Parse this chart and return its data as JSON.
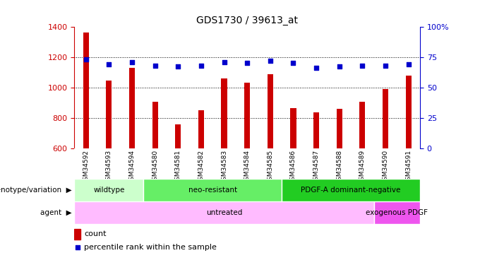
{
  "title": "GDS1730 / 39613_at",
  "samples": [
    "GSM34592",
    "GSM34593",
    "GSM34594",
    "GSM34580",
    "GSM34581",
    "GSM34582",
    "GSM34583",
    "GSM34584",
    "GSM34585",
    "GSM34586",
    "GSM34587",
    "GSM34588",
    "GSM34589",
    "GSM34590",
    "GSM34591"
  ],
  "counts": [
    1360,
    1045,
    1130,
    905,
    760,
    850,
    1060,
    1030,
    1085,
    865,
    835,
    860,
    905,
    990,
    1080
  ],
  "percentiles": [
    73,
    69,
    71,
    68,
    67,
    68,
    71,
    70,
    72,
    70,
    66,
    67,
    68,
    68,
    69
  ],
  "ymin": 600,
  "ymax": 1400,
  "bar_color": "#cc0000",
  "dot_color": "#0000cc",
  "background_color": "#ffffff",
  "plot_background": "#ffffff",
  "genotype_groups": [
    {
      "label": "wildtype",
      "start": 0,
      "end": 3,
      "color": "#ccffcc"
    },
    {
      "label": "neo-resistant",
      "start": 3,
      "end": 9,
      "color": "#66ee66"
    },
    {
      "label": "PDGF-A dominant-negative",
      "start": 9,
      "end": 15,
      "color": "#22cc22"
    }
  ],
  "agent_groups": [
    {
      "label": "untreated",
      "start": 0,
      "end": 13,
      "color": "#ffbbff"
    },
    {
      "label": "exogenous PDGF",
      "start": 13,
      "end": 15,
      "color": "#ee55ee"
    }
  ],
  "genotype_label": "genotype/variation",
  "agent_label": "agent",
  "legend_count": "count",
  "legend_pct": "percentile rank within the sample",
  "tick_color_left": "#cc0000",
  "tick_color_right": "#0000cc",
  "xtick_bg": "#dddddd"
}
